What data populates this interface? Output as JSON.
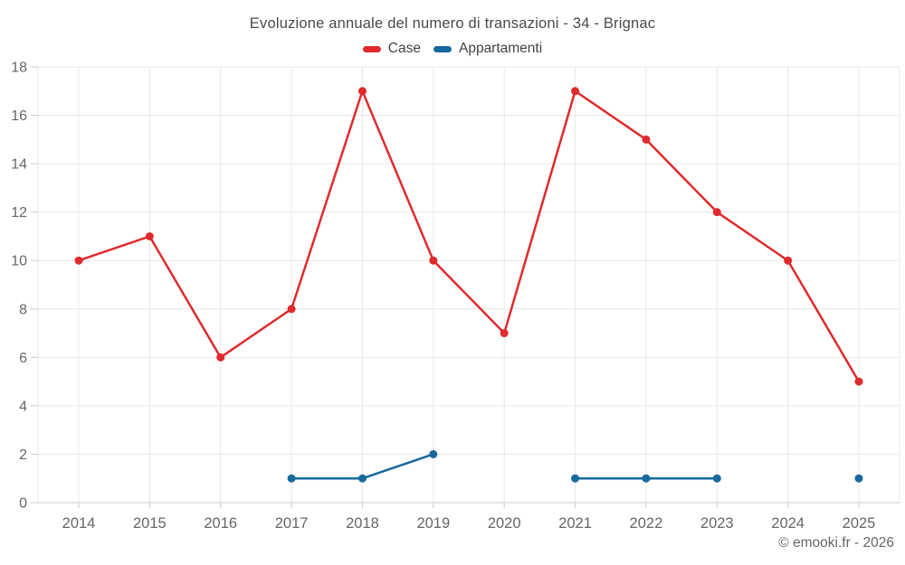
{
  "chart_data": {
    "type": "line",
    "title": "Evoluzione annuale del numero di transazioni - 34 - Brignac",
    "categories": [
      "2014",
      "2015",
      "2016",
      "2017",
      "2018",
      "2019",
      "2020",
      "2021",
      "2022",
      "2023",
      "2024",
      "2025"
    ],
    "series": [
      {
        "name": "Case",
        "color": "#df2b2d",
        "values": [
          10,
          11,
          6,
          8,
          17,
          10,
          7,
          17,
          15,
          12,
          10,
          5
        ]
      },
      {
        "name": "Appartamenti",
        "color": "#17699e",
        "values": [
          null,
          null,
          null,
          1,
          1,
          2,
          null,
          1,
          1,
          1,
          null,
          1
        ]
      }
    ],
    "xlabel": "",
    "ylabel": "",
    "ylim": [
      0,
      18
    ],
    "ytick_step": 2,
    "grid": true,
    "legend_position": "top",
    "footer": "© emooki.fr - 2026"
  },
  "colors": {
    "case_red": "#df2b2d",
    "appartamenti_blue": "#17699e",
    "gridline": "#e8e8e8",
    "axis_line": "#cccccc",
    "tick": "#cccccc",
    "axis_label": "#666666",
    "title_text": "#4a4a4a",
    "legend_text": "#424242"
  }
}
